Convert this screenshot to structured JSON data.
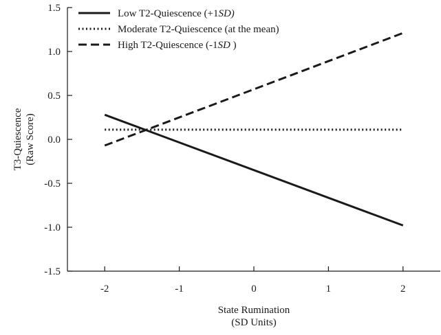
{
  "chart_data": {
    "type": "line",
    "x": [
      -2,
      2
    ],
    "xlim": [
      -2.5,
      2.5
    ],
    "ylim": [
      -1.5,
      1.5
    ],
    "xticks": [
      -2,
      -1,
      0,
      1,
      2
    ],
    "yticks": [
      -1.5,
      -1.0,
      -0.5,
      0.0,
      0.5,
      1.0,
      1.5
    ],
    "xtick_labels": [
      "-2",
      "-1",
      "0",
      "1",
      "2"
    ],
    "ytick_labels": [
      "-1.5",
      "-1.0",
      "-0.5",
      "0.0",
      "0.5",
      "1.0",
      "1.5"
    ],
    "xlabel": [
      "State Rumination",
      "(SD Units)"
    ],
    "ylabel": [
      "T3-Quiescence",
      "(Raw Score)"
    ],
    "legend_position": "top-left",
    "grid": false,
    "series": [
      {
        "name": "Low T2-Quiescence (+1SD)",
        "legend": {
          "prefix": "Low T2-Quiescence (+1",
          "italic": "SD)",
          "suffix": ""
        },
        "style": "solid",
        "values": [
          0.28,
          -0.98
        ]
      },
      {
        "name": "Moderate T2-Quiescence (at the mean)",
        "legend": {
          "prefix": "Moderate T2-Quiescence (at the mean)",
          "italic": "",
          "suffix": ""
        },
        "style": "dotted",
        "values": [
          0.11,
          0.11
        ]
      },
      {
        "name": "High T2-Quiescence (-1SD )",
        "legend": {
          "prefix": "High T2-Quiescence (-1",
          "italic": "SD",
          "suffix": " )"
        },
        "style": "dashed",
        "values": [
          -0.07,
          1.21
        ]
      }
    ]
  }
}
